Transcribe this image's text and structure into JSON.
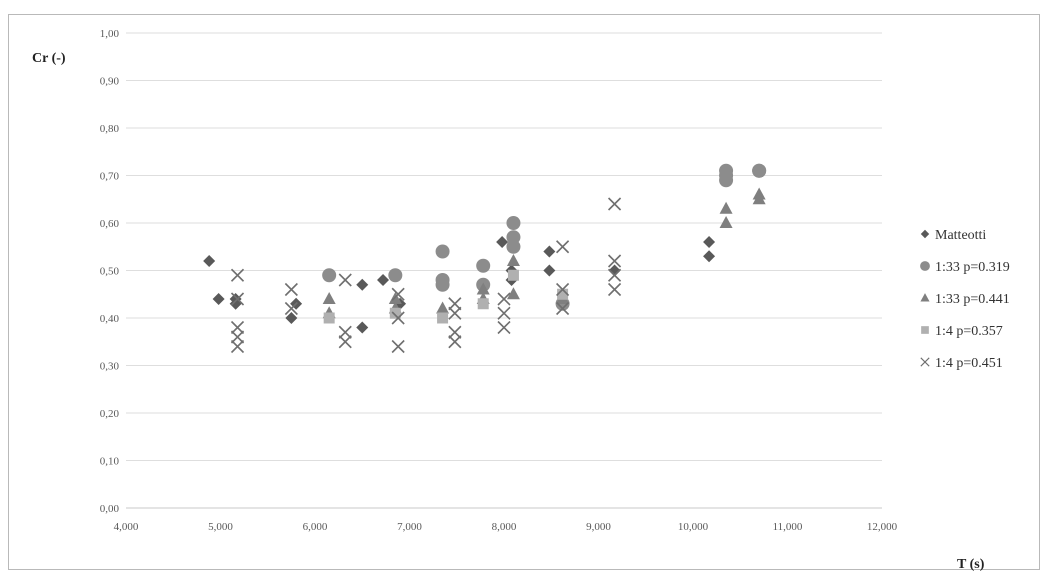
{
  "chart_data": {
    "type": "scatter",
    "title": "",
    "xlabel": "T (s)",
    "ylabel": "Cr (-)",
    "xlim": [
      4.0,
      12.0
    ],
    "ylim": [
      0.0,
      1.0
    ],
    "x_ticks": [
      "4,000",
      "5,000",
      "6,000",
      "7,000",
      "8,000",
      "9,000",
      "10,000",
      "11,000",
      "12,000"
    ],
    "y_ticks": [
      "0,00",
      "0,10",
      "0,20",
      "0,30",
      "0,40",
      "0,50",
      "0,60",
      "0,70",
      "0,80",
      "0,90",
      "1,00"
    ],
    "grid": true,
    "legend_position": "right",
    "series": [
      {
        "name": "Matteotti",
        "marker": "diamond",
        "color": "#595959",
        "points": [
          [
            4.88,
            0.52
          ],
          [
            4.98,
            0.44
          ],
          [
            5.16,
            0.44
          ],
          [
            5.16,
            0.43
          ],
          [
            5.8,
            0.43
          ],
          [
            5.75,
            0.4
          ],
          [
            6.5,
            0.47
          ],
          [
            6.5,
            0.38
          ],
          [
            6.72,
            0.48
          ],
          [
            6.9,
            0.43
          ],
          [
            7.98,
            0.56
          ],
          [
            8.08,
            0.48
          ],
          [
            8.08,
            0.5
          ],
          [
            8.48,
            0.54
          ],
          [
            8.48,
            0.5
          ],
          [
            9.17,
            0.5
          ],
          [
            10.17,
            0.56
          ],
          [
            10.17,
            0.53
          ]
        ]
      },
      {
        "name": "1:33 p=0.319",
        "marker": "circle",
        "color": "#8c8c8c",
        "points": [
          [
            6.15,
            0.49
          ],
          [
            6.85,
            0.49
          ],
          [
            7.35,
            0.54
          ],
          [
            7.35,
            0.48
          ],
          [
            7.35,
            0.47
          ],
          [
            7.78,
            0.51
          ],
          [
            7.78,
            0.47
          ],
          [
            8.1,
            0.6
          ],
          [
            8.1,
            0.57
          ],
          [
            8.1,
            0.55
          ],
          [
            8.62,
            0.43
          ],
          [
            10.35,
            0.71
          ],
          [
            10.35,
            0.7
          ],
          [
            10.35,
            0.69
          ],
          [
            10.7,
            0.71
          ],
          [
            10.7,
            0.71
          ]
        ]
      },
      {
        "name": "1:33 p=0.441",
        "marker": "triangle",
        "color": "#7f7f7f",
        "points": [
          [
            6.15,
            0.44
          ],
          [
            6.15,
            0.41
          ],
          [
            6.85,
            0.44
          ],
          [
            6.85,
            0.42
          ],
          [
            7.35,
            0.42
          ],
          [
            7.78,
            0.44
          ],
          [
            7.78,
            0.46
          ],
          [
            8.1,
            0.45
          ],
          [
            8.1,
            0.52
          ],
          [
            8.62,
            0.44
          ],
          [
            10.35,
            0.63
          ],
          [
            10.35,
            0.6
          ],
          [
            10.7,
            0.66
          ],
          [
            10.7,
            0.65
          ]
        ]
      },
      {
        "name": "1:4 p=0.357",
        "marker": "square",
        "color": "#b0b0b0",
        "points": [
          [
            6.15,
            0.4
          ],
          [
            6.85,
            0.41
          ],
          [
            7.35,
            0.4
          ],
          [
            7.78,
            0.43
          ],
          [
            8.1,
            0.49
          ],
          [
            8.62,
            0.45
          ]
        ]
      },
      {
        "name": "1:4 p=0.451",
        "marker": "x",
        "color": "#6f6f6f",
        "points": [
          [
            5.18,
            0.49
          ],
          [
            5.18,
            0.44
          ],
          [
            5.18,
            0.38
          ],
          [
            5.18,
            0.36
          ],
          [
            5.18,
            0.34
          ],
          [
            5.75,
            0.46
          ],
          [
            5.75,
            0.42
          ],
          [
            6.32,
            0.48
          ],
          [
            6.32,
            0.37
          ],
          [
            6.32,
            0.35
          ],
          [
            6.88,
            0.4
          ],
          [
            6.88,
            0.34
          ],
          [
            6.88,
            0.45
          ],
          [
            7.48,
            0.43
          ],
          [
            7.48,
            0.41
          ],
          [
            7.48,
            0.37
          ],
          [
            7.48,
            0.35
          ],
          [
            8.0,
            0.44
          ],
          [
            8.0,
            0.41
          ],
          [
            8.0,
            0.38
          ],
          [
            8.62,
            0.55
          ],
          [
            8.62,
            0.46
          ],
          [
            8.62,
            0.42
          ],
          [
            9.17,
            0.64
          ],
          [
            9.17,
            0.52
          ],
          [
            9.17,
            0.49
          ],
          [
            9.17,
            0.46
          ]
        ]
      }
    ]
  }
}
